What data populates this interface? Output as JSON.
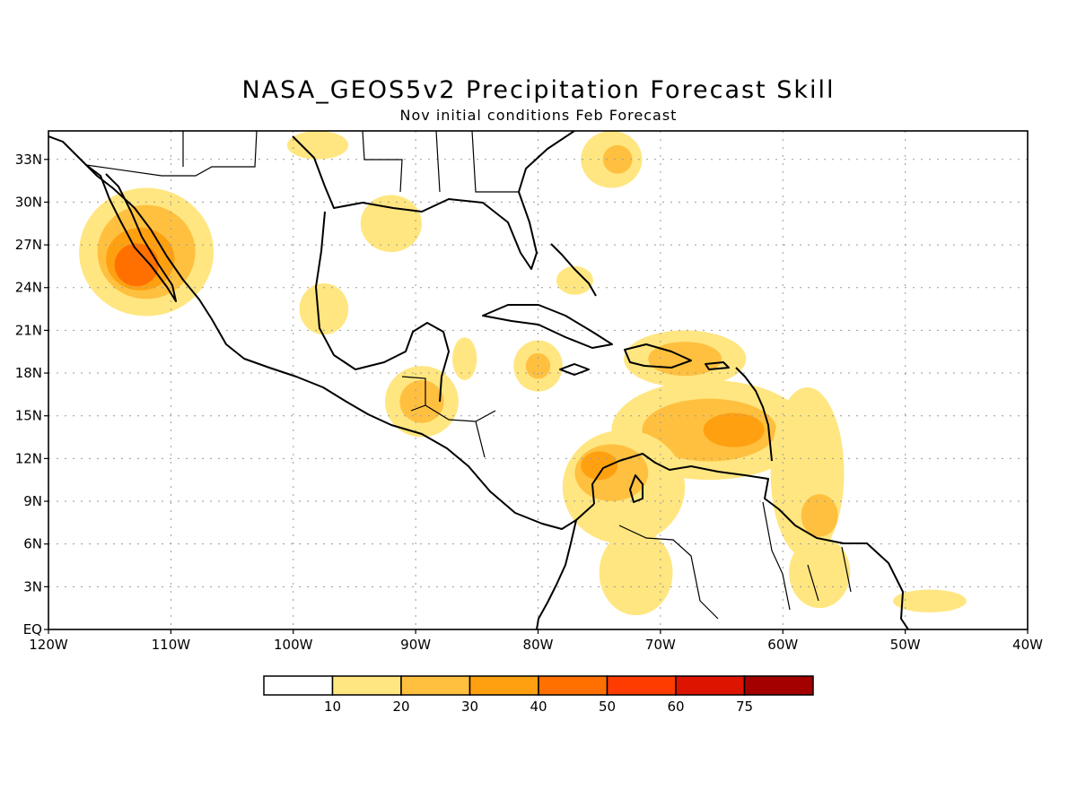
{
  "title": "NASA_GEOS5v2 Precipitation Forecast Skill",
  "subtitle": "Nov initial conditions  Feb Forecast",
  "chart_data": {
    "type": "heatmap",
    "title": "NASA_GEOS5v2 Precipitation Forecast Skill",
    "subtitle": "Nov initial conditions  Feb Forecast",
    "x_range": [
      -120,
      -40
    ],
    "y_range": [
      0,
      35
    ],
    "x_ticks": [
      {
        "v": -120,
        "label": "120W"
      },
      {
        "v": -110,
        "label": "110W"
      },
      {
        "v": -100,
        "label": "100W"
      },
      {
        "v": -90,
        "label": "90W"
      },
      {
        "v": -80,
        "label": "80W"
      },
      {
        "v": -70,
        "label": "70W"
      },
      {
        "v": -60,
        "label": "60W"
      },
      {
        "v": -50,
        "label": "50W"
      },
      {
        "v": -40,
        "label": "40W"
      }
    ],
    "y_ticks": [
      {
        "v": 0,
        "label": "EQ"
      },
      {
        "v": 3,
        "label": "3N"
      },
      {
        "v": 6,
        "label": "6N"
      },
      {
        "v": 9,
        "label": "9N"
      },
      {
        "v": 12,
        "label": "12N"
      },
      {
        "v": 15,
        "label": "15N"
      },
      {
        "v": 18,
        "label": "18N"
      },
      {
        "v": 21,
        "label": "21N"
      },
      {
        "v": 24,
        "label": "24N"
      },
      {
        "v": 27,
        "label": "27N"
      },
      {
        "v": 30,
        "label": "30N"
      },
      {
        "v": 33,
        "label": "33N"
      }
    ],
    "grid": true,
    "colorbar": {
      "colors": [
        "#ffffff",
        "#ffe680",
        "#ffc040",
        "#ffa010",
        "#ff7000",
        "#ff3c00",
        "#dd1400",
        "#a50000"
      ],
      "labels": [
        "10",
        "20",
        "30",
        "40",
        "50",
        "60",
        "75"
      ]
    },
    "regions": [
      {
        "name": "baja-mexico",
        "lon": -112,
        "lat": 26.5,
        "rlon": 5.5,
        "rlat": 4.5,
        "level": 1
      },
      {
        "name": "baja-mexico",
        "lon": -112,
        "lat": 26.5,
        "rlon": 4,
        "rlat": 3.3,
        "level": 2
      },
      {
        "name": "baja-mexico",
        "lon": -112.5,
        "lat": 26,
        "rlon": 2.8,
        "rlat": 2.2,
        "level": 3
      },
      {
        "name": "baja-mexico",
        "lon": -112.8,
        "lat": 25.6,
        "rlon": 1.8,
        "rlat": 1.5,
        "level": 4
      },
      {
        "name": "gulf-north",
        "lon": -92,
        "lat": 28.5,
        "rlon": 2.5,
        "rlat": 2,
        "level": 1
      },
      {
        "name": "us-south",
        "lon": -98,
        "lat": 34,
        "rlon": 2.5,
        "rlat": 1,
        "level": 1
      },
      {
        "name": "atlantic-north",
        "lon": -74,
        "lat": 33,
        "rlon": 2.5,
        "rlat": 2,
        "level": 1
      },
      {
        "name": "atlantic-north",
        "lon": -73.5,
        "lat": 33,
        "rlon": 1.2,
        "rlat": 1,
        "level": 2
      },
      {
        "name": "bahamas",
        "lon": -77,
        "lat": 24.5,
        "rlon": 1.5,
        "rlat": 1,
        "level": 1
      },
      {
        "name": "mexico-west",
        "lon": -97.5,
        "lat": 22.5,
        "rlon": 2,
        "rlat": 1.8,
        "level": 1
      },
      {
        "name": "caribbean-central",
        "lon": -80,
        "lat": 18.5,
        "rlon": 2,
        "rlat": 1.8,
        "level": 1
      },
      {
        "name": "caribbean-central",
        "lon": -80,
        "lat": 18.5,
        "rlon": 1,
        "rlat": 0.9,
        "level": 2
      },
      {
        "name": "hispaniola",
        "lon": -68,
        "lat": 19,
        "rlon": 5,
        "rlat": 2,
        "level": 1
      },
      {
        "name": "hispaniola",
        "lon": -68,
        "lat": 19,
        "rlon": 3,
        "rlat": 1.2,
        "level": 2
      },
      {
        "name": "central-america",
        "lon": -89.5,
        "lat": 16,
        "rlon": 3,
        "rlat": 2.5,
        "level": 1
      },
      {
        "name": "central-america",
        "lon": -89.5,
        "lat": 16,
        "rlon": 1.8,
        "rlat": 1.5,
        "level": 2
      },
      {
        "name": "yucatan-east",
        "lon": -86,
        "lat": 19,
        "rlon": 1,
        "rlat": 1.5,
        "level": 1
      },
      {
        "name": "caribbean-south",
        "lon": -66,
        "lat": 14,
        "rlon": 8,
        "rlat": 3.5,
        "level": 1
      },
      {
        "name": "caribbean-south",
        "lon": -66,
        "lat": 14,
        "rlon": 5.5,
        "rlat": 2.2,
        "level": 2
      },
      {
        "name": "caribbean-south",
        "lon": -64,
        "lat": 14,
        "rlon": 2.5,
        "rlat": 1.2,
        "level": 3
      },
      {
        "name": "colombia-venezuela",
        "lon": -73,
        "lat": 10,
        "rlon": 5,
        "rlat": 4,
        "level": 1
      },
      {
        "name": "colombia-venezuela",
        "lon": -74,
        "lat": 11,
        "rlon": 3,
        "rlat": 2,
        "level": 2
      },
      {
        "name": "colombia-venezuela",
        "lon": -75,
        "lat": 11.5,
        "rlon": 1.5,
        "rlat": 1,
        "level": 3
      },
      {
        "name": "colombia-interior",
        "lon": -72,
        "lat": 4,
        "rlon": 3,
        "rlat": 3,
        "level": 1
      },
      {
        "name": "atlantic-east",
        "lon": -58,
        "lat": 11,
        "rlon": 3,
        "rlat": 6,
        "level": 1
      },
      {
        "name": "atlantic-east",
        "lon": -57,
        "lat": 8,
        "rlon": 1.5,
        "rlat": 1.5,
        "level": 2
      },
      {
        "name": "guianas",
        "lon": -57,
        "lat": 4,
        "rlon": 2.5,
        "rlat": 2.5,
        "level": 1
      },
      {
        "name": "brazil-coast",
        "lon": -48,
        "lat": 2,
        "rlon": 3,
        "rlat": 0.8,
        "level": 1
      }
    ]
  }
}
